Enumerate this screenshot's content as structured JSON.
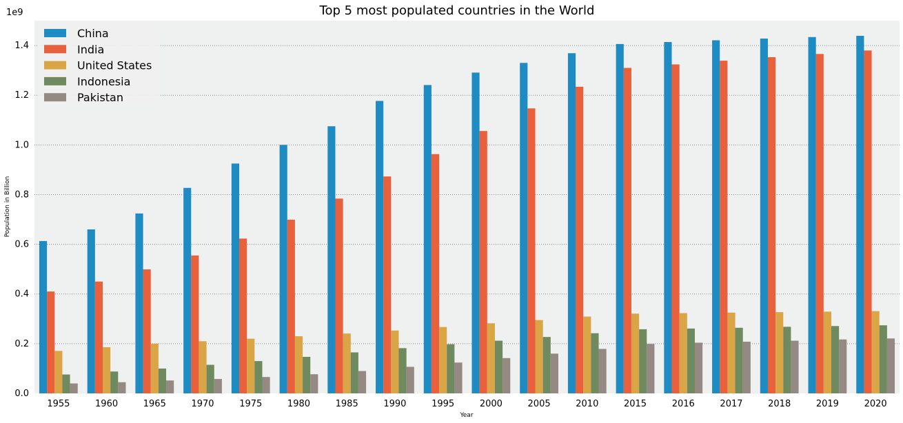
{
  "chart_data": {
    "type": "bar",
    "title": "Top 5 most populated countries in the World",
    "xlabel": "Year",
    "ylabel": "Population in Billion",
    "offset_text": "1e9",
    "ylim": [
      0,
      1.5
    ],
    "yticks": [
      "0.0",
      "0.2",
      "0.4",
      "0.6",
      "0.8",
      "1.0",
      "1.2",
      "1.4"
    ],
    "ytick_values": [
      0,
      0.2,
      0.4,
      0.6,
      0.8,
      1.0,
      1.2,
      1.4
    ],
    "grid": true,
    "legend_position": "top-left",
    "categories": [
      "1955",
      "1960",
      "1965",
      "1970",
      "1975",
      "1980",
      "1985",
      "1990",
      "1995",
      "2000",
      "2005",
      "2010",
      "2015",
      "2016",
      "2017",
      "2018",
      "2019",
      "2020"
    ],
    "series": [
      {
        "name": "China",
        "color": "#1f8bc3",
        "values": [
          0.613,
          0.66,
          0.724,
          0.827,
          0.925,
          1.0,
          1.075,
          1.177,
          1.241,
          1.291,
          1.33,
          1.369,
          1.406,
          1.414,
          1.421,
          1.428,
          1.434,
          1.439
        ]
      },
      {
        "name": "India",
        "color": "#e8603c",
        "values": [
          0.41,
          0.45,
          0.499,
          0.555,
          0.623,
          0.699,
          0.784,
          0.873,
          0.963,
          1.056,
          1.147,
          1.234,
          1.31,
          1.324,
          1.339,
          1.353,
          1.366,
          1.38
        ]
      },
      {
        "name": "United States",
        "color": "#d9a547",
        "values": [
          0.171,
          0.186,
          0.2,
          0.21,
          0.22,
          0.23,
          0.241,
          0.253,
          0.267,
          0.282,
          0.295,
          0.309,
          0.321,
          0.323,
          0.325,
          0.327,
          0.329,
          0.331
        ]
      },
      {
        "name": "Indonesia",
        "color": "#6f8a5e",
        "values": [
          0.076,
          0.088,
          0.1,
          0.115,
          0.13,
          0.147,
          0.165,
          0.182,
          0.198,
          0.212,
          0.227,
          0.242,
          0.258,
          0.261,
          0.264,
          0.268,
          0.271,
          0.274
        ]
      },
      {
        "name": "Pakistan",
        "color": "#958984",
        "values": [
          0.04,
          0.045,
          0.052,
          0.058,
          0.066,
          0.077,
          0.09,
          0.107,
          0.124,
          0.142,
          0.16,
          0.179,
          0.199,
          0.204,
          0.208,
          0.212,
          0.217,
          0.221
        ]
      }
    ]
  }
}
